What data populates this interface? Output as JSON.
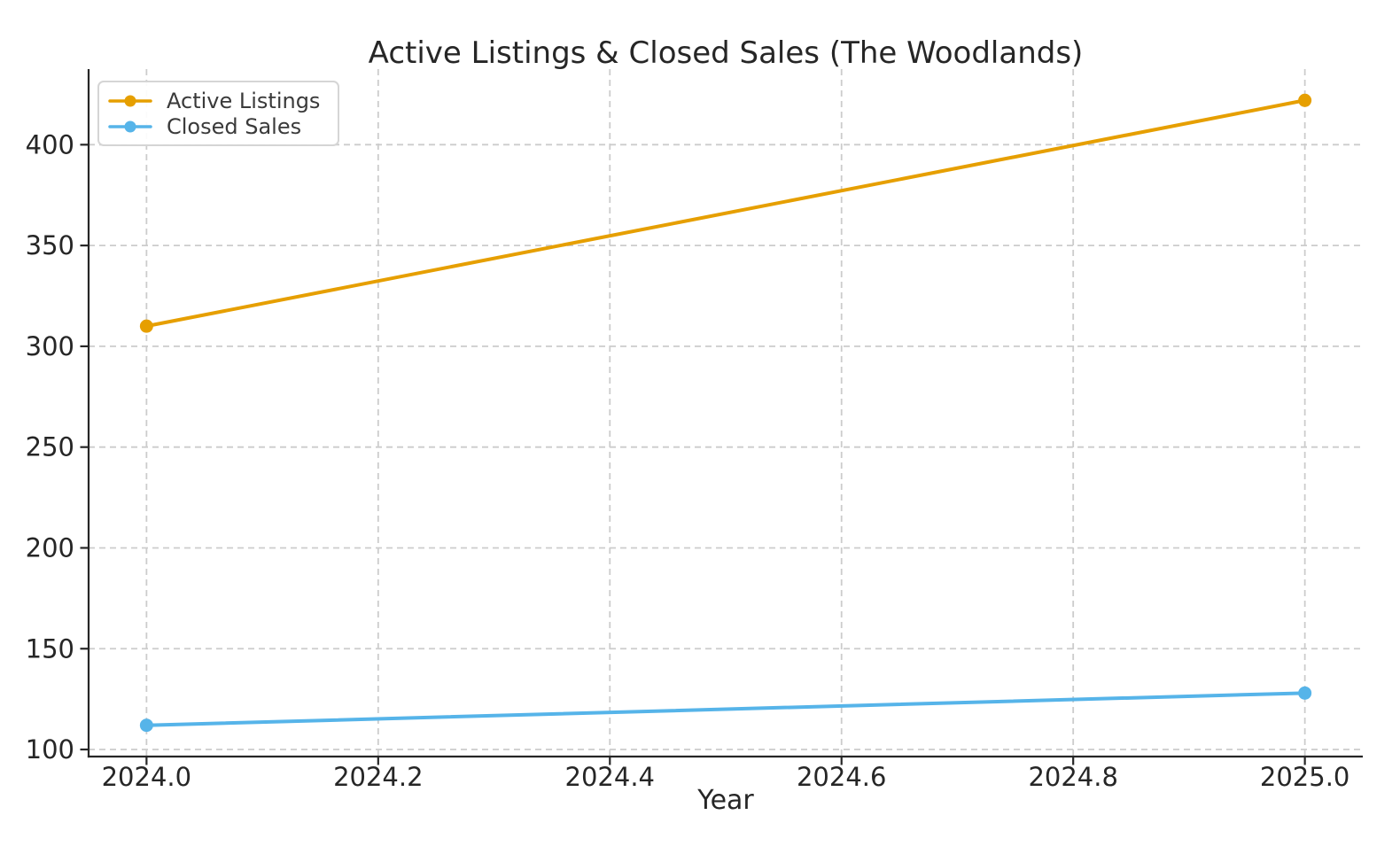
{
  "chart_data": {
    "type": "line",
    "title": "Active Listings & Closed Sales (The Woodlands)",
    "xlabel": "Year",
    "ylabel": "",
    "x": [
      2024,
      2025
    ],
    "series": [
      {
        "name": "Active Listings",
        "color": "#E69F00",
        "values": [
          310,
          422
        ]
      },
      {
        "name": "Closed Sales",
        "color": "#56B4E9",
        "values": [
          112,
          128
        ]
      }
    ],
    "x_ticks": [
      "2024.0",
      "2024.2",
      "2024.4",
      "2024.6",
      "2024.8",
      "2025.0"
    ],
    "x_tick_values": [
      2024.0,
      2024.2,
      2024.4,
      2024.6,
      2024.8,
      2025.0
    ],
    "y_ticks": [
      "100",
      "150",
      "200",
      "250",
      "300",
      "350",
      "400"
    ],
    "y_tick_values": [
      100,
      150,
      200,
      250,
      300,
      350,
      400
    ],
    "xlim": [
      2023.95,
      2025.05
    ],
    "ylim": [
      96.5,
      437.5
    ],
    "grid": true,
    "grid_style": "dashed",
    "legend_position": "upper-left",
    "colors": {
      "axis_text": "#262626",
      "spine": "#262626",
      "grid": "#cccccc",
      "background": "#ffffff",
      "legend_border": "#d5d5d5"
    }
  }
}
